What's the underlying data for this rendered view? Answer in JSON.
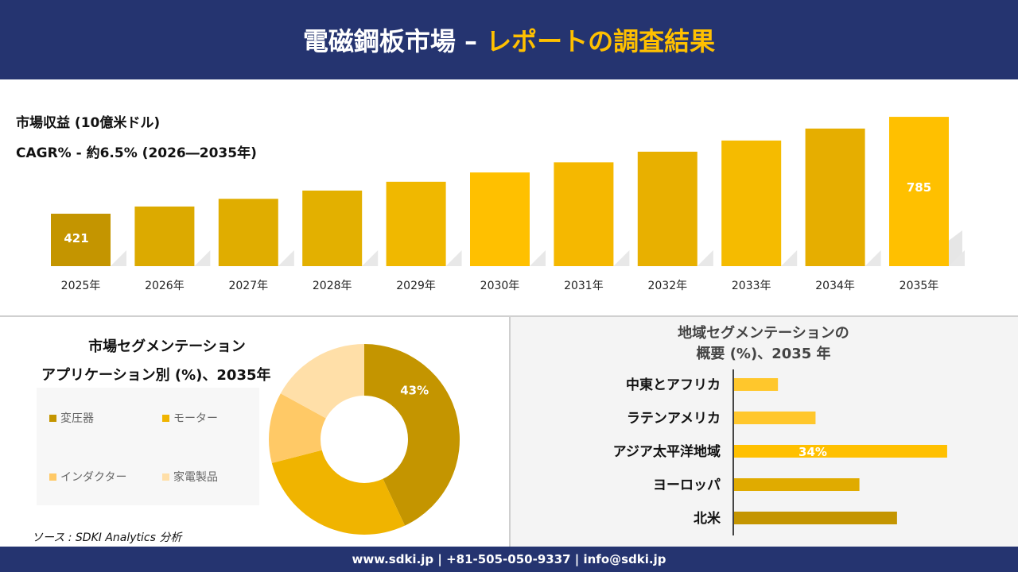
{
  "header": {
    "title_main": "電磁鋼板市場 –",
    "title_accent": "レポートの調査結果"
  },
  "revenue": {
    "label": "市場収益 (10億米ドル)",
    "cagr": "CAGR% - 約6.5% (2026―2035年)"
  },
  "chart_data": [
    {
      "type": "bar",
      "categories": [
        "2025年",
        "2026年",
        "2027年",
        "2028年",
        "2029年",
        "2030年",
        "2031年",
        "2032年",
        "2033年",
        "2034年",
        "2035年"
      ],
      "values": [
        421,
        448,
        477,
        508,
        541,
        576,
        614,
        654,
        696,
        741,
        785
      ],
      "data_labels": {
        "0": "421",
        "10": "785"
      },
      "ylabel": "市場収益 (10億米ドル)",
      "grid": false,
      "colors": [
        "#c49500",
        "#dcaa00",
        "#e0ad00",
        "#e3b000",
        "#f0b800",
        "#ffc000",
        "#f5b800",
        "#e8b000",
        "#f5bb00",
        "#e6ae00",
        "#ffc000"
      ]
    },
    {
      "type": "pie",
      "title": "市場セグメンテーション アプリケーション別 (%)、2035年",
      "categories": [
        "変圧器",
        "モーター",
        "インダクター",
        "家電製品"
      ],
      "values": [
        43,
        28,
        12,
        17
      ],
      "data_labels": {
        "0": "43%"
      },
      "colors": [
        "#c49500",
        "#f0b400",
        "#ffc966",
        "#ffdfa8"
      ],
      "legend": "left"
    },
    {
      "type": "bar",
      "orientation": "horizontal",
      "title": "地域セグメンテーションの 概要 (%)、2035 年",
      "categories": [
        "中東とアフリカ",
        "ラテンアメリカ",
        "アジア太平洋地域",
        "ヨーロッパ",
        "北米"
      ],
      "values": [
        7,
        13,
        34,
        20,
        26
      ],
      "data_labels": {
        "2": "34%"
      },
      "colors": [
        "#ffc72c",
        "#ffc72c",
        "#ffc000",
        "#e0ab00",
        "#c49500"
      ]
    }
  ],
  "pie_title_1": "市場セグメンテーション",
  "pie_title_2": "アプリケーション別 (%)、2035年",
  "region_title_1": "地域セグメンテーションの",
  "region_title_2": "概要 (%)、2035 年",
  "source": "ソース : SDKI Analytics 分析",
  "footer": "www.sdki.jp | +81-505-050-9337 | info@sdki.jp"
}
